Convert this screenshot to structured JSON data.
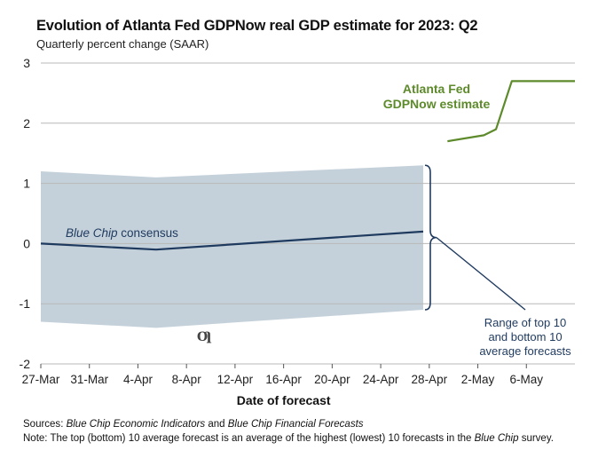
{
  "chart_data": {
    "type": "line",
    "title": "Evolution of Atlanta Fed GDPNow real GDP estimate for 2023: Q2",
    "subtitle": "Quarterly percent change (SAAR)",
    "xlabel": "Date of forecast",
    "ylabel": "",
    "ylim": [
      -2,
      3
    ],
    "yticks": [
      -2,
      -1,
      0,
      1,
      2,
      3
    ],
    "ytick_labels": [
      "-2",
      "-1",
      "0",
      "1",
      "2",
      "3"
    ],
    "xlim_days": [
      0,
      44
    ],
    "xticks": [
      {
        "label": "27-Mar",
        "day": 0
      },
      {
        "label": "31-Mar",
        "day": 4
      },
      {
        "label": "4-Apr",
        "day": 8
      },
      {
        "label": "8-Apr",
        "day": 12
      },
      {
        "label": "12-Apr",
        "day": 16
      },
      {
        "label": "16-Apr",
        "day": 20
      },
      {
        "label": "20-Apr",
        "day": 24
      },
      {
        "label": "24-Apr",
        "day": 28
      },
      {
        "label": "28-Apr",
        "day": 32
      },
      {
        "label": "2-May",
        "day": 36
      },
      {
        "label": "6-May",
        "day": 40
      }
    ],
    "grid": true,
    "series": [
      {
        "name": "Blue Chip consensus",
        "color": "#1f3a5f",
        "points": [
          [
            0,
            0.0
          ],
          [
            9.5,
            -0.1
          ],
          [
            31.5,
            0.2
          ]
        ]
      },
      {
        "name": "Atlanta Fed GDPNow estimate",
        "color": "#5d8a2a",
        "points": [
          [
            33.5,
            1.7
          ],
          [
            36.5,
            1.8
          ],
          [
            37.5,
            1.9
          ],
          [
            38.8,
            2.7
          ],
          [
            44,
            2.7
          ]
        ]
      }
    ],
    "band": {
      "name": "Range of top 10 and bottom 10 average forecasts",
      "color": "#c5d1da",
      "upper": [
        [
          0,
          1.2
        ],
        [
          9.5,
          1.1
        ],
        [
          31.5,
          1.3
        ]
      ],
      "lower": [
        [
          0,
          -1.3
        ],
        [
          9.5,
          -1.4
        ],
        [
          31.5,
          -1.1
        ]
      ]
    },
    "annotations": {
      "consensus_label_italic": "Blue Chip",
      "consensus_label_rest": " consensus",
      "gdpnow_label_line1": "Atlanta Fed",
      "gdpnow_label_line2": "GDPNow estimate",
      "range_label_line1": "Range of top 10",
      "range_label_line2": "and bottom 10",
      "range_label_line3": "average forecasts"
    }
  },
  "footer": {
    "sources_label": "Sources",
    "sources_sep": ": ",
    "sources_italic1": "Blue Chip Economic Indicators",
    "sources_and": " and ",
    "sources_italic2": "Blue Chip Financial Forecasts",
    "note_label": "Note:",
    "note_text": " The top (bottom) 10 average forecast is an average of the highest (lowest) 10 forecasts in the ",
    "note_italic": "Blue Chip",
    "note_end": " survey."
  },
  "logo_glyph": "Ƣ"
}
